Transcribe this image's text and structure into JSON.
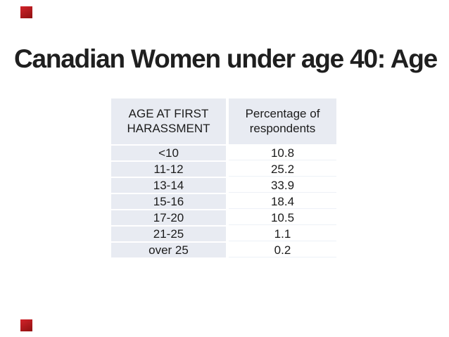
{
  "slide": {
    "title": "Canadian Women under age 40: Age",
    "corner_mark_color": "#c00000",
    "table_fill_color": "#e8ebf2"
  },
  "table": {
    "header": {
      "col1": "AGE AT FIRST\nHARASSMENT",
      "col2": "Percentage of\nrespondents"
    },
    "rows": [
      {
        "age": "<10",
        "pct": "10.8"
      },
      {
        "age": "11-12",
        "pct": "25.2"
      },
      {
        "age": "13-14",
        "pct": "33.9"
      },
      {
        "age": "15-16",
        "pct": "18.4"
      },
      {
        "age": "17-20",
        "pct": "10.5"
      },
      {
        "age": "21-25",
        "pct": "1.1"
      },
      {
        "age": "over 25",
        "pct": "0.2"
      }
    ]
  },
  "chart_data": {
    "type": "table",
    "title": "Canadian Women under age 40: Age",
    "columns": [
      "AGE AT FIRST HARASSMENT",
      "Percentage of respondents"
    ],
    "categories": [
      "<10",
      "11-12",
      "13-14",
      "15-16",
      "17-20",
      "21-25",
      "over 25"
    ],
    "values": [
      10.8,
      25.2,
      33.9,
      18.4,
      10.5,
      1.1,
      0.2
    ]
  }
}
